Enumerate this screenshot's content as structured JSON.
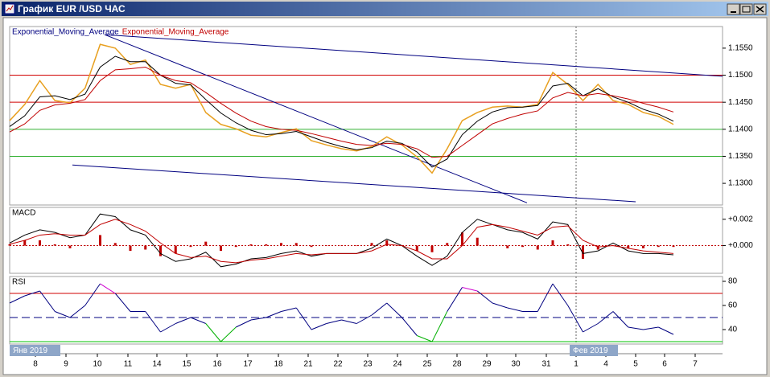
{
  "window": {
    "title": "График EUR /USD ЧАС"
  },
  "x_labels": [
    "8",
    "9",
    "10",
    "11",
    "14",
    "15",
    "16",
    "17",
    "18",
    "21",
    "22",
    "23",
    "24",
    "25",
    "28",
    "29",
    "30",
    "31",
    "1",
    "4",
    "5",
    "6",
    "7"
  ],
  "period_labels": [
    "Янв 2019",
    "Фев 2019"
  ],
  "chart_data": [
    {
      "type": "line",
      "ylim": [
        1.126,
        1.159
      ],
      "yticks": [
        {
          "value": 1.155,
          "label": "1.1550"
        },
        {
          "value": 1.15,
          "label": "1.1500"
        },
        {
          "value": 1.145,
          "label": "1.1450"
        },
        {
          "value": 1.14,
          "label": "1.1400"
        },
        {
          "value": 1.135,
          "label": "1.1350"
        },
        {
          "value": 1.13,
          "label": "1.1300"
        }
      ],
      "series": [
        {
          "color": "#e8a020",
          "values": [
            1.1416,
            1.1446,
            1.149,
            1.1453,
            1.1449,
            1.1476,
            1.1557,
            1.155,
            1.152,
            1.1528,
            1.1483,
            1.1476,
            1.1483,
            1.1431,
            1.1409,
            1.1401,
            1.1389,
            1.1386,
            1.1394,
            1.1401,
            1.1379,
            1.1371,
            1.1364,
            1.136,
            1.1368,
            1.1386,
            1.1371,
            1.1349,
            1.1319,
            1.1364,
            1.1416,
            1.1431,
            1.1441,
            1.1443,
            1.1441,
            1.1446,
            1.1505,
            1.1483,
            1.1453,
            1.1483,
            1.1453,
            1.1446,
            1.1431,
            1.1424,
            1.1409
          ]
        },
        {
          "name": "Exponential_Moving_Average",
          "color": "#000000",
          "label_color": "#000080",
          "values": [
            1.1405,
            1.1425,
            1.146,
            1.1462,
            1.1455,
            1.1465,
            1.1515,
            1.1535,
            1.1525,
            1.1525,
            1.15,
            1.1485,
            1.1482,
            1.1455,
            1.143,
            1.1412,
            1.1398,
            1.139,
            1.1392,
            1.1396,
            1.1386,
            1.1376,
            1.1368,
            1.1362,
            1.1366,
            1.1378,
            1.1374,
            1.1358,
            1.133,
            1.1345,
            1.139,
            1.1415,
            1.1432,
            1.144,
            1.1441,
            1.1444,
            1.148,
            1.1485,
            1.1462,
            1.1475,
            1.146,
            1.145,
            1.1437,
            1.1428,
            1.1415
          ]
        },
        {
          "name": "Exponential_Moving_Average",
          "color": "#c00000",
          "label_color": "#c00000",
          "values": [
            1.1395,
            1.141,
            1.1435,
            1.1445,
            1.1448,
            1.1455,
            1.149,
            1.151,
            1.1512,
            1.1515,
            1.15,
            1.149,
            1.1486,
            1.1468,
            1.1448,
            1.143,
            1.1415,
            1.1405,
            1.14,
            1.1398,
            1.1392,
            1.1385,
            1.1378,
            1.1372,
            1.137,
            1.1374,
            1.1372,
            1.1364,
            1.1348,
            1.135,
            1.137,
            1.139,
            1.141,
            1.142,
            1.1428,
            1.1434,
            1.1458,
            1.1468,
            1.1462,
            1.1466,
            1.1462,
            1.1456,
            1.1448,
            1.1441,
            1.1432
          ]
        }
      ],
      "levels": [
        {
          "value": 1.15,
          "color": "#d00000"
        },
        {
          "value": 1.145,
          "color": "#d00000"
        },
        {
          "value": 1.14,
          "color": "#30b030"
        },
        {
          "value": 1.135,
          "color": "#30b030"
        }
      ],
      "trendlines": [
        {
          "values": [
            1.1575,
            1.1498
          ],
          "color": "#000080"
        },
        {
          "values": [
            1.1575,
            1.1264
          ],
          "color": "#000080"
        },
        {
          "values": [
            1.1334,
            1.1266
          ],
          "color": "#000080"
        }
      ]
    },
    {
      "type": "macd",
      "title": "MACD",
      "ylim": [
        -0.0021,
        0.0029
      ],
      "yticks": [
        {
          "value": 0.002,
          "label": "+0.002"
        },
        {
          "value": 0,
          "label": "+0.000"
        }
      ],
      "series": [
        {
          "color": "#000000",
          "values": [
            0.0002,
            0.0008,
            0.0012,
            0.001,
            0.0006,
            0.0008,
            0.0024,
            0.0022,
            0.0012,
            0.0008,
            -0.0006,
            -0.0012,
            -0.001,
            -0.0005,
            -0.0016,
            -0.0014,
            -0.001,
            -0.0009,
            -0.0006,
            -0.0004,
            -0.0008,
            -0.0006,
            -0.0006,
            -0.0006,
            -0.0002,
            0.0005,
            0,
            -0.0008,
            -0.0015,
            -0.0008,
            0.001,
            0.002,
            0.0016,
            0.0012,
            0.001,
            0.0005,
            0.0018,
            0.0016,
            -0.0006,
            -0.0004,
            0.0002,
            -0.0004,
            -0.0006,
            -0.0006,
            -0.0007
          ]
        },
        {
          "color": "#c00000",
          "values": [
            0.0001,
            0.0004,
            0.0008,
            0.0009,
            0.0008,
            0.0008,
            0.0016,
            0.002,
            0.0016,
            0.0011,
            0.0002,
            -0.0006,
            -0.0009,
            -0.0008,
            -0.0012,
            -0.0013,
            -0.0011,
            -0.001,
            -0.0008,
            -0.0006,
            -0.0007,
            -0.0006,
            -0.0006,
            -0.0006,
            -0.0004,
            0.0001,
            0,
            -0.0004,
            -0.001,
            -0.001,
            0,
            0.0014,
            0.0016,
            0.0014,
            0.0011,
            0.0008,
            0.0014,
            0.0015,
            0.0004,
            -0.0001,
            0,
            -0.0002,
            -0.0004,
            -0.0005,
            -0.0006
          ]
        }
      ],
      "histogram": {
        "color": "#c00000",
        "values": [
          0.0001,
          0.0004,
          0.0004,
          0.0001,
          -0.0002,
          0,
          0.0008,
          0.0002,
          -0.0004,
          -0.0003,
          -0.0008,
          -0.0006,
          -0.0001,
          0.0003,
          -0.0004,
          -0.0001,
          0.0001,
          0.0001,
          0.0002,
          0.0002,
          -0.0001,
          0,
          0,
          0,
          0.0002,
          0.0004,
          0,
          -0.0004,
          -0.0005,
          0.0002,
          0.001,
          0.0006,
          0,
          -0.0002,
          -0.0001,
          -0.0003,
          0.0004,
          0.0001,
          -0.001,
          -0.0003,
          0,
          -0.0002,
          -0.0002,
          -0.0001,
          -0.0001
        ]
      },
      "levels": [
        {
          "value": 0,
          "color": "#c00000",
          "dashed": true
        }
      ]
    },
    {
      "type": "rsi",
      "title": "RSI",
      "ylim": [
        28,
        84
      ],
      "yticks": [
        80,
        60,
        40
      ],
      "series": [
        {
          "color": "#000080",
          "high_color": "#d000d0",
          "low_color": "#00b000",
          "high": 70,
          "low": 30,
          "values": [
            62,
            68,
            72,
            55,
            50,
            60,
            78,
            70,
            55,
            55,
            38,
            45,
            50,
            45,
            30,
            42,
            48,
            50,
            55,
            58,
            40,
            45,
            48,
            45,
            52,
            62,
            50,
            35,
            30,
            55,
            75,
            72,
            62,
            58,
            55,
            55,
            78,
            60,
            38,
            45,
            55,
            42,
            40,
            42,
            36
          ]
        }
      ],
      "levels": [
        {
          "value": 70,
          "color": "#d00000"
        },
        {
          "value": 50,
          "color": "#000080",
          "dashed": true
        },
        {
          "value": 30,
          "color": "#00c000"
        }
      ]
    }
  ]
}
